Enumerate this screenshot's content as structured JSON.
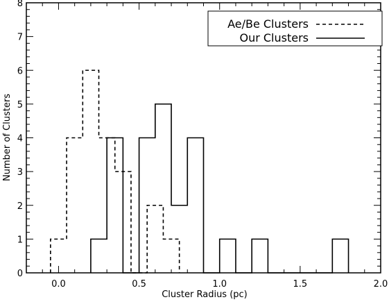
{
  "chart_data": {
    "type": "histogram-step",
    "xlabel": "Cluster Radius (pc)",
    "ylabel": "Number of Clusters",
    "xlim": [
      -0.2,
      2.0
    ],
    "ylim": [
      0,
      8
    ],
    "x_ticks": [
      {
        "value": 0.0,
        "label": "0.0"
      },
      {
        "value": 0.5,
        "label": "0.5"
      },
      {
        "value": 1.0,
        "label": "1.0"
      },
      {
        "value": 1.5,
        "label": "1.5"
      },
      {
        "value": 2.0,
        "label": "2.0"
      }
    ],
    "y_ticks": [
      {
        "value": 0,
        "label": "0"
      },
      {
        "value": 1,
        "label": "1"
      },
      {
        "value": 2,
        "label": "2"
      },
      {
        "value": 3,
        "label": "3"
      },
      {
        "value": 4,
        "label": "4"
      },
      {
        "value": 5,
        "label": "5"
      },
      {
        "value": 6,
        "label": "6"
      },
      {
        "value": 7,
        "label": "7"
      },
      {
        "value": 8,
        "label": "8"
      }
    ],
    "legend_position": "top-right",
    "series": [
      {
        "name": "Ae/Be Clusters",
        "line_style": "dashed",
        "bin_edges": [
          -0.05,
          0.05,
          0.15,
          0.25,
          0.35,
          0.45,
          0.55,
          0.65,
          0.75
        ],
        "counts": [
          1,
          4,
          6,
          4,
          3,
          0,
          2,
          1
        ]
      },
      {
        "name": "Our Clusters",
        "line_style": "solid",
        "bin_edges": [
          0.2,
          0.3,
          0.4,
          0.5,
          0.6,
          0.7,
          0.8,
          0.9,
          1.0,
          1.1,
          1.2,
          1.3,
          1.4,
          1.5,
          1.6,
          1.7,
          1.8
        ],
        "counts": [
          1,
          4,
          0,
          4,
          5,
          2,
          4,
          0,
          1,
          0,
          1,
          0,
          0,
          0,
          0,
          1
        ]
      }
    ],
    "color": "#000000"
  }
}
